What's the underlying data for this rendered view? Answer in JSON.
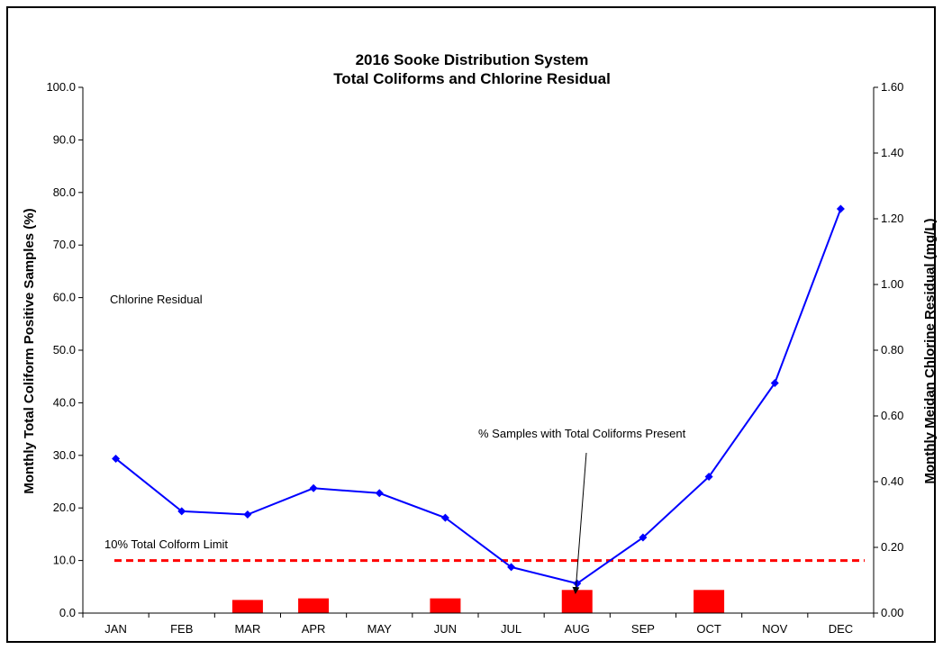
{
  "chart_data": {
    "type": "bar",
    "title": "2016 Sooke Distribution System",
    "subtitle": "Total Coliforms and Chlorine Residual",
    "categories": [
      "JAN",
      "FEB",
      "MAR",
      "APR",
      "MAY",
      "JUN",
      "JUL",
      "AUG",
      "SEP",
      "OCT",
      "NOV",
      "DEC"
    ],
    "ylabel": "Monthly Total Coliform Positive Samples (%)",
    "y2label": "Monthly Meidan Chlorine Residual (mg/L)",
    "ylim": [
      0,
      100
    ],
    "y2lim": [
      0,
      1.6
    ],
    "yticks": [
      "0.0",
      "10.0",
      "20.0",
      "30.0",
      "40.0",
      "50.0",
      "60.0",
      "70.0",
      "80.0",
      "90.0",
      "100.0"
    ],
    "y2ticks": [
      "0.00",
      "0.20",
      "0.40",
      "0.60",
      "0.80",
      "1.00",
      "1.20",
      "1.40",
      "1.60"
    ],
    "grid": false,
    "series": [
      {
        "name": "% Samples with Total Coliforms Present",
        "kind": "bar",
        "axis": "left",
        "color": "#ff0000",
        "values": [
          0,
          0,
          2.5,
          2.8,
          0,
          2.8,
          0,
          4.4,
          0,
          4.4,
          0,
          0
        ]
      },
      {
        "name": "Chlorine Residual",
        "kind": "line",
        "axis": "right",
        "color": "#0000ff",
        "marker": "diamond",
        "values": [
          0.47,
          0.31,
          0.3,
          0.38,
          0.365,
          0.29,
          0.14,
          0.09,
          0.23,
          0.415,
          0.7,
          1.23
        ]
      }
    ],
    "reference_lines": [
      {
        "label": "10% Total Colform Limit",
        "axis": "left",
        "value": 10,
        "color": "#ff0000",
        "style": "dashed"
      }
    ],
    "annotations": [
      {
        "text": "Chlorine Residual"
      },
      {
        "text": "% Samples with Total Coliforms Present",
        "points_to": "AUG"
      }
    ]
  }
}
